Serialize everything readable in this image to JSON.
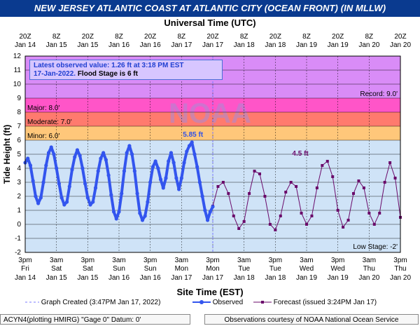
{
  "page": {
    "title": "NEW JERSEY ATLANTIC COAST AT ATLANTIC CITY (OCEAN FRONT) (IN MLLW)",
    "top_axis_title": "Universal Time (UTC)",
    "bottom_axis_title": "Site Time (EST)",
    "latest_line1": "Latest observed value: 1.26 ft at 3:18 PM EST",
    "latest_line2a": "17-Jan-2022.",
    "latest_line2b": "Flood Stage is 6 ft",
    "legend_graph_created": "Graph Created (3:47PM Jan 17, 2022)",
    "legend_observed": "Observed",
    "legend_forecast": "Forecast (issued 3:24PM Jan 17)",
    "footer_left": "ACYN4(plotting HMIRG) \"Gage 0\" Datum: 0'",
    "footer_right": "Observations courtesy of NOAA National Ocean Service",
    "watermark": "NOAA"
  },
  "chart_data": {
    "type": "line",
    "title": "NEW JERSEY ATLANTIC COAST AT ATLANTIC CITY (OCEAN FRONT) (IN MLLW)",
    "xlabel": "Site Time (EST)",
    "x2label": "Universal Time (UTC)",
    "ylabel": "Tide Height (ft)",
    "ylim": [
      -2,
      12
    ],
    "yticks": [
      -2,
      -1,
      0,
      1,
      2,
      3,
      4,
      5,
      6,
      7,
      8,
      9,
      10,
      11,
      12
    ],
    "x_start_hours": 0,
    "x_end_hours": 144,
    "x_tick_hours": [
      0,
      12,
      24,
      36,
      48,
      60,
      72,
      84,
      96,
      108,
      120,
      132,
      144
    ],
    "x_labels_bottom": [
      [
        "3pm",
        "Fri",
        "Jan 14"
      ],
      [
        "3am",
        "Sat",
        "Jan 15"
      ],
      [
        "3pm",
        "Sat",
        "Jan 15"
      ],
      [
        "3am",
        "Sun",
        "Jan 16"
      ],
      [
        "3pm",
        "Sun",
        "Jan 16"
      ],
      [
        "3am",
        "Mon",
        "Jan 17"
      ],
      [
        "3pm",
        "Mon",
        "Jan 17"
      ],
      [
        "3am",
        "Tue",
        "Jan 18"
      ],
      [
        "3pm",
        "Tue",
        "Jan 18"
      ],
      [
        "3am",
        "Wed",
        "Jan 19"
      ],
      [
        "3pm",
        "Wed",
        "Jan 19"
      ],
      [
        "3am",
        "Thu",
        "Jan 20"
      ],
      [
        "3pm",
        "Thu",
        "Jan 20"
      ]
    ],
    "x_labels_top": [
      [
        "20Z",
        "Jan 14"
      ],
      [
        "8Z",
        "Jan 15"
      ],
      [
        "20Z",
        "Jan 15"
      ],
      [
        "8Z",
        "Jan 16"
      ],
      [
        "20Z",
        "Jan 16"
      ],
      [
        "8Z",
        "Jan 17"
      ],
      [
        "20Z",
        "Jan 17"
      ],
      [
        "8Z",
        "Jan 18"
      ],
      [
        "20Z",
        "Jan 18"
      ],
      [
        "8Z",
        "Jan 19"
      ],
      [
        "20Z",
        "Jan 19"
      ],
      [
        "8Z",
        "Jan 20"
      ],
      [
        "20Z",
        "Jan 20"
      ]
    ],
    "grid": true,
    "bands": [
      {
        "name": "Minor: 6.0'",
        "from": 6,
        "to": 7,
        "color": "#ffc77a"
      },
      {
        "name": "Moderate: 7.0'",
        "from": 7,
        "to": 8,
        "color": "#ff7a6e"
      },
      {
        "name": "Major: 8.0'",
        "from": 8,
        "to": 9,
        "color": "#ff55c8"
      },
      {
        "name": "Record: 9.0'",
        "from": 9,
        "to": 12,
        "color": "#d98cf7"
      }
    ],
    "low_stage_label": "Low Stage: -2'",
    "created_hours": 72,
    "annotations": [
      {
        "text": "5.85 ft",
        "x": 64.4,
        "y": 5.85,
        "color": "#2f52e8"
      },
      {
        "text": "4.5 ft",
        "x": 105.6,
        "y": 4.5,
        "color": "#6a0a6a"
      }
    ],
    "series": [
      {
        "name": "Observed",
        "color": "#3355ee",
        "x": [
          0,
          1,
          2,
          3,
          4,
          5,
          6,
          7,
          8,
          9,
          10,
          11,
          12,
          13,
          14,
          15,
          16,
          17,
          18,
          19,
          20,
          21,
          22,
          23,
          24,
          25,
          26,
          27,
          28,
          29,
          30,
          31,
          32,
          33,
          34,
          35,
          36,
          37,
          38,
          39,
          40,
          41,
          42,
          43,
          44,
          45,
          46,
          47,
          48,
          49,
          50,
          51,
          52,
          53,
          54,
          55,
          56,
          57,
          58,
          59,
          60,
          61,
          62,
          63,
          64,
          65,
          66,
          67,
          68,
          69,
          70,
          71,
          72
        ],
        "y": [
          4.4,
          4.7,
          4.2,
          3.1,
          2.0,
          1.5,
          1.9,
          3.0,
          4.2,
          5.1,
          5.5,
          5.0,
          4.0,
          2.9,
          1.9,
          1.4,
          1.6,
          2.7,
          3.9,
          4.8,
          5.3,
          4.9,
          4.0,
          2.9,
          1.9,
          1.4,
          1.6,
          2.6,
          3.8,
          4.7,
          5.1,
          4.6,
          3.5,
          2.1,
          0.9,
          0.4,
          0.9,
          2.2,
          3.8,
          5.1,
          5.6,
          5.0,
          3.8,
          2.2,
          0.8,
          0.3,
          0.6,
          1.6,
          3.0,
          4.1,
          4.5,
          4.0,
          3.2,
          2.6,
          3.3,
          4.5,
          5.1,
          4.4,
          3.3,
          2.5,
          3.3,
          4.4,
          5.2,
          5.6,
          5.85,
          5.0,
          4.1,
          3.0,
          2.0,
          1.0,
          0.3,
          0.9,
          1.26
        ]
      },
      {
        "name": "Forecast (issued 3:24PM Jan 17)",
        "color": "#6a0a6a",
        "x": [
          72,
          74,
          76,
          78,
          80,
          82,
          84,
          86,
          88,
          90,
          92,
          94,
          96,
          98,
          100,
          102,
          104,
          106,
          108,
          110,
          112,
          114,
          116,
          118,
          120,
          122,
          124,
          126,
          128,
          130,
          132,
          134,
          136,
          138,
          140,
          142,
          144
        ],
        "y": [
          1.3,
          2.7,
          3.0,
          2.2,
          0.6,
          -0.3,
          0.2,
          2.2,
          3.8,
          3.6,
          2.0,
          0.0,
          -0.4,
          0.6,
          2.3,
          3.0,
          2.7,
          0.8,
          0.0,
          0.6,
          2.6,
          4.2,
          4.5,
          3.4,
          1.0,
          -0.2,
          0.3,
          2.2,
          3.1,
          2.6,
          0.8,
          0.0,
          0.8,
          3.0,
          4.4,
          3.3,
          0.5
        ]
      }
    ]
  }
}
